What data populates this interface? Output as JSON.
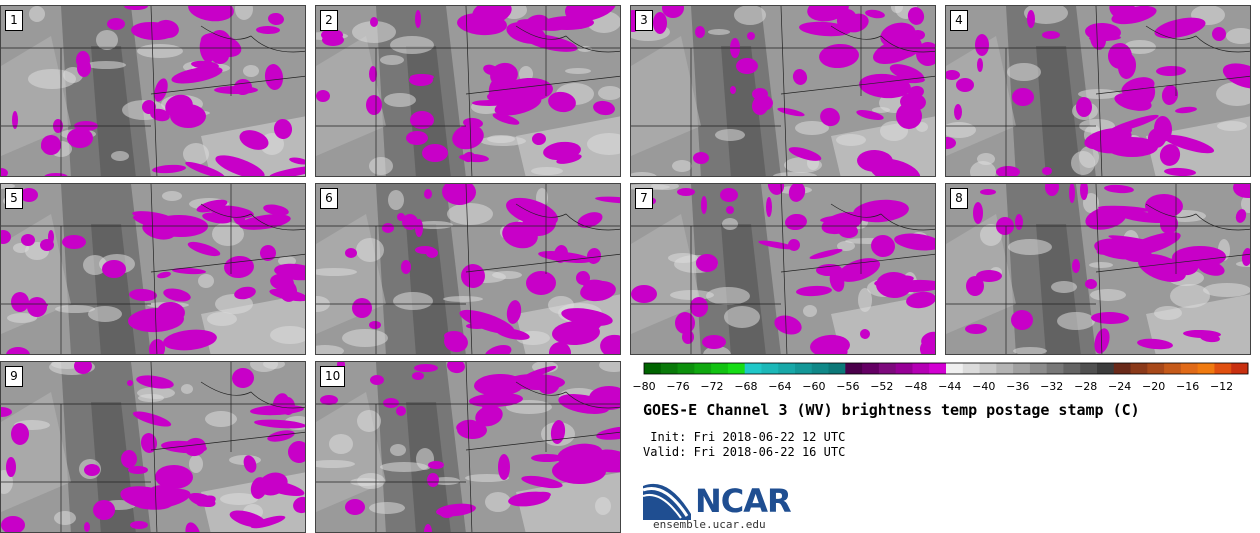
{
  "figure": {
    "title": "GOES-E Channel 3 (WV) brightness temp postage stamp (C)",
    "init_line": " Init: Fri 2018-06-22 12 UTC",
    "valid_line": "Valid: Fri 2018-06-22 16 UTC",
    "logo_text": "NCAR",
    "logo_url": "ensemble.ucar.edu"
  },
  "panels": [
    {
      "label": "1"
    },
    {
      "label": "2"
    },
    {
      "label": "3"
    },
    {
      "label": "4"
    },
    {
      "label": "5"
    },
    {
      "label": "6"
    },
    {
      "label": "7"
    },
    {
      "label": "8"
    },
    {
      "label": "9"
    },
    {
      "label": "10"
    }
  ],
  "colorbar": {
    "ticks": [
      "−80",
      "−76",
      "−72",
      "−68",
      "−64",
      "−60",
      "−56",
      "−52",
      "−48",
      "−44",
      "−40",
      "−36",
      "−32",
      "−28",
      "−24",
      "−20",
      "−16",
      "−12"
    ],
    "colors": [
      "#006400",
      "#0a7a0a",
      "#0d900d",
      "#10a810",
      "#12c212",
      "#16dc16",
      "#20c8c8",
      "#1cb8b8",
      "#18a8a8",
      "#149898",
      "#108888",
      "#0c7878",
      "#4b004b",
      "#640064",
      "#7d0a7d",
      "#960096",
      "#b400b4",
      "#d200d2",
      "#f0f0f0",
      "#dcdcdc",
      "#c8c8c8",
      "#b4b4b4",
      "#a0a0a0",
      "#8c8c8c",
      "#787878",
      "#646464",
      "#505050",
      "#3c3c3c",
      "#6a2a1a",
      "#8b3a1a",
      "#a8491a",
      "#c55a1a",
      "#e06a18",
      "#f07a10",
      "#e05010",
      "#c83010"
    ]
  },
  "colors": {
    "deep_convection": "#c800c8",
    "background_gray": "#8e8e8e",
    "logo_blue": "#1f4e91"
  }
}
